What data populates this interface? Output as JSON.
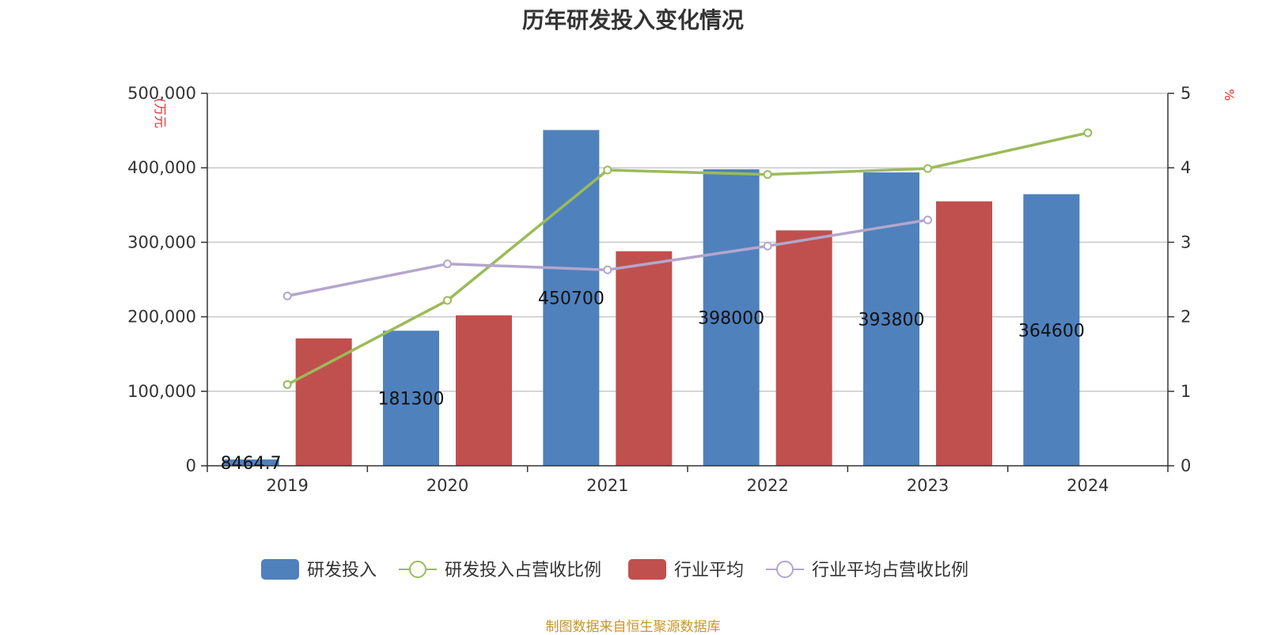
{
  "chart_data": {
    "type": "bar",
    "title": "历年研发投入变化情况",
    "categories": [
      "2019",
      "2020",
      "2021",
      "2022",
      "2023",
      "2024"
    ],
    "left_axis": {
      "unit_label": "(万元",
      "ylim": [
        0,
        500000
      ],
      "ticks": [
        0,
        100000,
        200000,
        300000,
        400000,
        500000
      ],
      "tick_labels": [
        "0",
        "100,000",
        "200,000",
        "300,000",
        "400,000",
        "500,000"
      ]
    },
    "right_axis": {
      "unit_label": "%",
      "ylim": [
        0,
        5
      ],
      "ticks": [
        0,
        1,
        2,
        3,
        4,
        5
      ],
      "tick_labels": [
        "0",
        "1",
        "2",
        "3",
        "4",
        "5"
      ]
    },
    "series": [
      {
        "name": "研发投入",
        "type": "bar",
        "axis": "left",
        "color": "#4f81bd",
        "values": [
          8464.7,
          181300,
          450700,
          398000,
          393800,
          364600
        ],
        "data_labels": [
          "8464.7",
          "181300",
          "450700",
          "398000",
          "393800",
          "364600"
        ]
      },
      {
        "name": "研发投入占营收比例",
        "type": "line",
        "axis": "right",
        "color": "#9bbb59",
        "values": [
          1.09,
          2.22,
          3.97,
          3.91,
          3.99,
          4.47
        ]
      },
      {
        "name": "行业平均",
        "type": "bar",
        "axis": "left",
        "color": "#c0504d",
        "values": [
          171000,
          202000,
          288000,
          316000,
          355000,
          null
        ]
      },
      {
        "name": "行业平均占营收比例",
        "type": "line",
        "axis": "right",
        "color": "#b3a6cc",
        "values": [
          2.28,
          2.71,
          2.63,
          2.95,
          3.3,
          null
        ]
      }
    ],
    "grid": true,
    "legend_position": "bottom"
  },
  "source_note": "制图数据来自恒生聚源数据库"
}
